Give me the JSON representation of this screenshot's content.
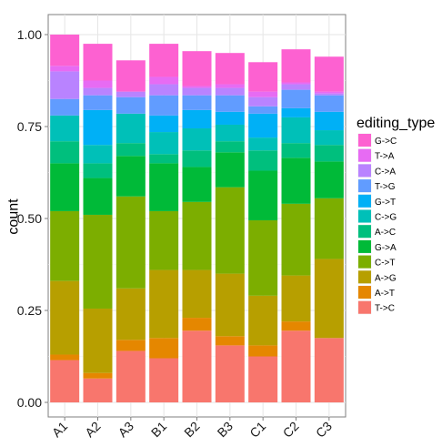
{
  "chart_data": {
    "type": "bar",
    "stacked": true,
    "categories": [
      "A1",
      "A2",
      "A3",
      "B1",
      "B2",
      "B3",
      "C1",
      "C2",
      "C3"
    ],
    "xlabel": "",
    "ylabel": "count",
    "ylim": [
      0,
      1
    ],
    "yticks": [
      "0.00",
      "0.25",
      "0.50",
      "0.75",
      "1.00"
    ],
    "grid": true,
    "legend_title": "editing_type",
    "legend_position": "right",
    "series": [
      {
        "name": "T->C",
        "color": "#F8766D",
        "values": [
          0.115,
          0.065,
          0.14,
          0.12,
          0.195,
          0.155,
          0.125,
          0.195,
          0.175
        ]
      },
      {
        "name": "A->T",
        "color": "#E58700",
        "values": [
          0.015,
          0.015,
          0.03,
          0.055,
          0.035,
          0.025,
          0.03,
          0.025,
          0.0
        ]
      },
      {
        "name": "A->G",
        "color": "#B79F00",
        "values": [
          0.2,
          0.175,
          0.14,
          0.185,
          0.13,
          0.17,
          0.135,
          0.125,
          0.215
        ]
      },
      {
        "name": "C->T",
        "color": "#7CAE00",
        "values": [
          0.19,
          0.255,
          0.25,
          0.16,
          0.185,
          0.235,
          0.205,
          0.195,
          0.165
        ]
      },
      {
        "name": "G->A",
        "color": "#00BA38",
        "values": [
          0.13,
          0.1,
          0.11,
          0.13,
          0.095,
          0.095,
          0.135,
          0.125,
          0.1
        ]
      },
      {
        "name": "A->C",
        "color": "#00BF7D",
        "values": [
          0.06,
          0.04,
          0.035,
          0.025,
          0.045,
          0.03,
          0.055,
          0.04,
          0.045
        ]
      },
      {
        "name": "C->G",
        "color": "#00C0B8",
        "values": [
          0.07,
          0.05,
          0.08,
          0.06,
          0.06,
          0.045,
          0.035,
          0.07,
          0.04
        ]
      },
      {
        "name": "G->T",
        "color": "#00B0F6",
        "values": [
          0.0,
          0.095,
          0.0,
          0.045,
          0.05,
          0.035,
          0.065,
          0.025,
          0.05
        ]
      },
      {
        "name": "T->G",
        "color": "#619CFF",
        "values": [
          0.045,
          0.04,
          0.045,
          0.055,
          0.04,
          0.045,
          0.02,
          0.05,
          0.045
        ]
      },
      {
        "name": "C->A",
        "color": "#B983FF",
        "values": [
          0.075,
          0.02,
          0.015,
          0.03,
          0.02,
          0.02,
          0.025,
          0.015,
          0.005
        ]
      },
      {
        "name": "T->A",
        "color": "#E76BF3",
        "values": [
          0.015,
          0.02,
          0.0,
          0.02,
          0.005,
          0.01,
          0.015,
          0.005,
          0.005
        ]
      },
      {
        "name": "G->C",
        "color": "#FD61D1",
        "values": [
          0.085,
          0.1,
          0.085,
          0.09,
          0.095,
          0.085,
          0.08,
          0.09,
          0.095
        ]
      }
    ]
  }
}
